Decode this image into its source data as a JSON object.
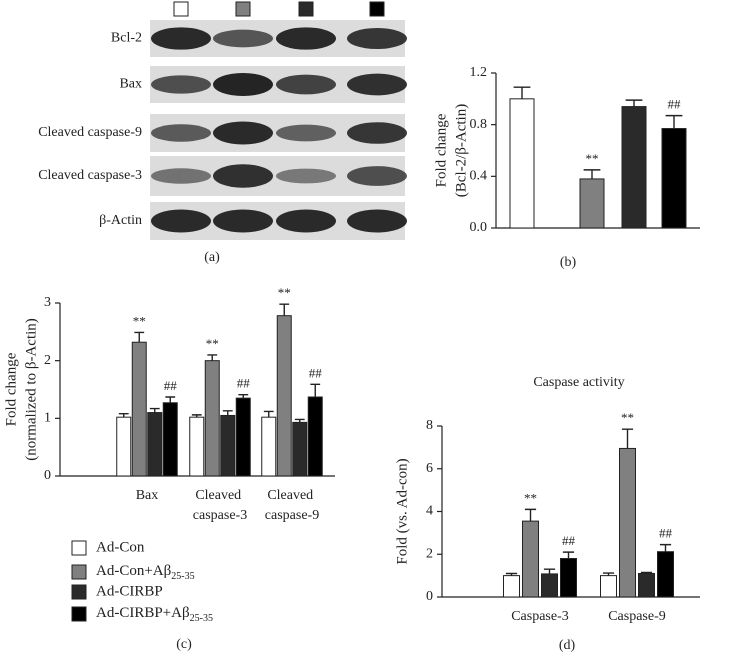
{
  "chart_data": [
    {
      "type": "blot",
      "panel_label": "(a)",
      "rows": [
        "Bcl-2",
        "Bax",
        "Cleaved caspase-9",
        "Cleaved caspase-3",
        "β-Actin"
      ],
      "lane_colors": [
        "#ffffff",
        "#808080",
        "#2a2a2a",
        "#000000"
      ]
    },
    {
      "type": "bar",
      "panel_label": "(b)",
      "ylabel": [
        "Fold change",
        "(Bcl-2/β-Actin)"
      ],
      "values": [
        1.0,
        0.38,
        0.94,
        0.77
      ],
      "errors": [
        0.09,
        0.07,
        0.05,
        0.1
      ],
      "labels": [
        null,
        "**",
        null,
        "##"
      ],
      "colors": [
        "#ffffff",
        "#808080",
        "#2a2a2a",
        "#000000"
      ],
      "ylim": [
        0,
        1.2
      ],
      "yticks": [
        {
          "value": 0,
          "label": "0.0"
        },
        0.4,
        0.8,
        1.2
      ]
    },
    {
      "type": "grouped_bar",
      "panel_label": "(c)",
      "ylabel": [
        "Fold change",
        "(normalized to β-Actin)"
      ],
      "categories": [
        "Bax",
        "Cleaved caspase-3",
        "Cleaved caspase-9"
      ],
      "series": [
        {
          "name": "Ad-Con",
          "color": "#ffffff",
          "values": [
            1.02,
            1.02,
            1.02
          ],
          "errors": [
            0.06,
            0.04,
            0.1
          ]
        },
        {
          "name": "Ad-Con+Aβ25-35",
          "color": "#808080",
          "values": [
            2.32,
            2.0,
            2.78
          ],
          "errors": [
            0.17,
            0.1,
            0.2
          ],
          "labels": [
            "**",
            "**",
            "**"
          ]
        },
        {
          "name": "Ad-CIRBP",
          "color": "#2a2a2a",
          "values": [
            1.1,
            1.05,
            0.93
          ],
          "errors": [
            0.07,
            0.08,
            0.05
          ]
        },
        {
          "name": "Ad-CIRBP+Aβ25-35",
          "color": "#000000",
          "values": [
            1.27,
            1.35,
            1.37
          ],
          "errors": [
            0.1,
            0.06,
            0.22
          ],
          "labels": [
            "##",
            "##",
            "##"
          ]
        }
      ],
      "ylim": [
        0,
        3
      ],
      "yticks": [
        0,
        1,
        2,
        3
      ]
    },
    {
      "type": "grouped_bar",
      "panel_label": "(d)",
      "title": "Caspase activity",
      "ylabel": [
        "Fold (vs. Ad-con)"
      ],
      "categories": [
        "Caspase-3",
        "Caspase-9"
      ],
      "series": [
        {
          "color": "#ffffff",
          "values": [
            1.0,
            1.0
          ],
          "errors": [
            0.1,
            0.12
          ]
        },
        {
          "color": "#808080",
          "values": [
            3.55,
            6.95
          ],
          "errors": [
            0.55,
            0.9
          ],
          "labels": [
            "**",
            "**"
          ]
        },
        {
          "color": "#2a2a2a",
          "values": [
            1.08,
            1.1
          ],
          "errors": [
            0.22,
            0.05
          ]
        },
        {
          "color": "#000000",
          "values": [
            1.8,
            2.12
          ],
          "errors": [
            0.3,
            0.33
          ],
          "labels": [
            "##",
            "##"
          ]
        }
      ],
      "ylim": [
        0,
        8
      ],
      "yticks": [
        0,
        2,
        4,
        6,
        8
      ]
    }
  ]
}
